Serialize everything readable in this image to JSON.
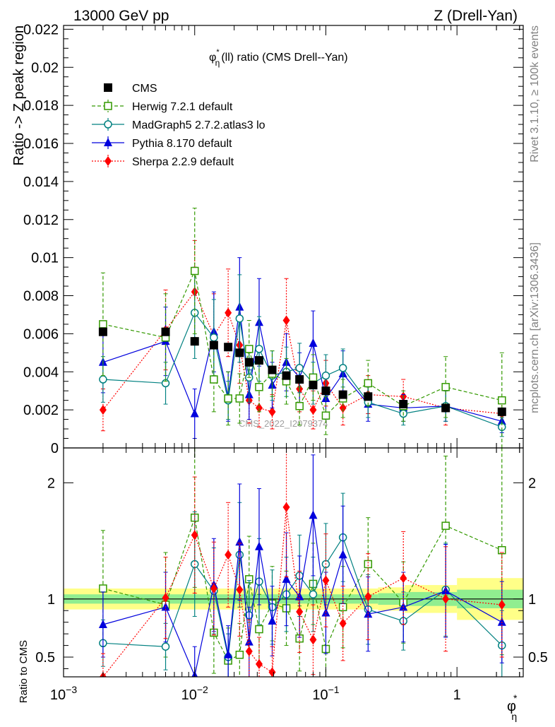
{
  "header": {
    "left": "13000 GeV pp",
    "right": "Z (Drell-Yan)"
  },
  "side_labels": {
    "rivet": "Rivet 3.1.10, ≥ 100k events",
    "mcplots": "mcplots.cern.ch [arXiv:1306.3436]"
  },
  "watermark": "CMS_2022_I2079374",
  "colors": {
    "CMS": "#000000",
    "Herwig": "#339900",
    "MadGraph": "#008080",
    "Pythia": "#0000dd",
    "Sherpa": "#ff0000",
    "band_stat": "#90ee90",
    "band_total": "#ffff88"
  },
  "chart_data": [
    {
      "type": "scatter",
      "title_base": "φ",
      "title_sup": "*",
      "title_sub": "η",
      "title_rest": "(ll) ratio (CMS Drell--Yan)",
      "ylabel": "Ratio -> Z peak region",
      "xscale": "log",
      "xlim": [
        0.001,
        3.2
      ],
      "ylim": [
        0,
        0.0222
      ],
      "yticks": [
        {
          "v": 0,
          "label": "0"
        },
        {
          "v": 0.002,
          "label": "0.002"
        },
        {
          "v": 0.004,
          "label": "0.004"
        },
        {
          "v": 0.006,
          "label": "0.006"
        },
        {
          "v": 0.008,
          "label": "0.008"
        },
        {
          "v": 0.01,
          "label": "0.01"
        },
        {
          "v": 0.012,
          "label": "0.012"
        },
        {
          "v": 0.014,
          "label": "0.014"
        },
        {
          "v": 0.016,
          "label": "0.016"
        },
        {
          "v": 0.018,
          "label": "0.018"
        },
        {
          "v": 0.02,
          "label": "0.02"
        },
        {
          "v": 0.022,
          "label": "0.022"
        }
      ],
      "x": [
        0.002,
        0.006,
        0.01,
        0.014,
        0.018,
        0.022,
        0.026,
        0.031,
        0.039,
        0.05,
        0.063,
        0.08,
        0.1,
        0.135,
        0.21,
        0.39,
        0.82,
        2.2
      ],
      "legend": {
        "placement": "top-left"
      },
      "series": [
        {
          "name": "CMS",
          "key": "CMS",
          "marker": "filled-square",
          "line": "none",
          "y": [
            0.0061,
            0.0061,
            0.0056,
            0.0054,
            0.0053,
            0.005,
            0.0045,
            0.0046,
            0.0041,
            0.0038,
            0.0036,
            0.0033,
            0.003,
            0.0028,
            0.0027,
            0.0023,
            0.0021,
            0.0019
          ],
          "err": [
            0.0002,
            0.0002,
            0.0002,
            0.0002,
            0.0002,
            0.0002,
            0.0002,
            0.0002,
            0.0002,
            0.0002,
            0.0002,
            0.0002,
            0.0002,
            0.0002,
            0.0002,
            0.0002,
            0.0002,
            0.0002
          ]
        },
        {
          "name": "Herwig 7.2.1 default",
          "key": "Herwig",
          "marker": "open-square",
          "line": "dashed",
          "y": [
            0.0065,
            0.0058,
            0.0093,
            0.0036,
            0.0026,
            0.0026,
            0.0052,
            0.0032,
            0.0039,
            0.0035,
            0.0022,
            0.0037,
            0.0017,
            0.0026,
            0.0034,
            0.0022,
            0.0032,
            0.0025
          ],
          "err": [
            0.0027,
            0.0023,
            0.0033,
            0.0017,
            0.0014,
            0.0013,
            0.0015,
            0.0013,
            0.0012,
            0.0012,
            0.001,
            0.0012,
            0.001,
            0.001,
            0.0012,
            0.0008,
            0.0016,
            0.0025
          ]
        },
        {
          "name": "MadGraph5 2.7.2.atlas3 lo",
          "key": "MadGraph",
          "marker": "open-circle",
          "line": "solid",
          "y": [
            0.0036,
            0.0034,
            0.0071,
            0.0058,
            0.0025,
            0.0068,
            0.0037,
            0.0052,
            0.0038,
            0.004,
            0.0042,
            0.0034,
            0.0038,
            0.0042,
            0.0024,
            0.0018,
            0.0022,
            0.0011
          ],
          "err": [
            0.0012,
            0.0011,
            0.0024,
            0.002,
            0.001,
            0.0023,
            0.0013,
            0.0017,
            0.0013,
            0.0013,
            0.0013,
            0.0011,
            0.0011,
            0.001,
            0.0008,
            0.0006,
            0.0008,
            0.0005
          ]
        },
        {
          "name": "Pythia 8.170 default",
          "key": "Pythia",
          "marker": "filled-triangle",
          "line": "solid",
          "y": [
            0.0045,
            0.0056,
            0.0018,
            0.0061,
            0.0027,
            0.0074,
            0.0028,
            0.0066,
            0.0033,
            0.0045,
            0.0037,
            0.0055,
            0.0026,
            0.0039,
            0.0023,
            0.0021,
            0.0022,
            0.0014
          ],
          "err": [
            0.0016,
            0.0018,
            0.0013,
            0.0021,
            0.0013,
            0.0026,
            0.0013,
            0.0023,
            0.0012,
            0.0015,
            0.0013,
            0.0017,
            0.0011,
            0.0012,
            0.0009,
            0.0007,
            0.0008,
            0.0006
          ]
        },
        {
          "name": "Sherpa 2.2.9 default",
          "key": "Sherpa",
          "marker": "filled-diamond",
          "line": "dotted",
          "y": [
            0.002,
            0.0062,
            0.0082,
            0.0059,
            0.0071,
            0.0054,
            0.0025,
            0.0021,
            0.0019,
            0.0067,
            0.0031,
            0.002,
            0.0034,
            0.0021,
            0.0028,
            0.0027,
            0.0021,
            0.0018
          ],
          "err": [
            0.0011,
            0.0021,
            0.0027,
            0.0022,
            0.0023,
            0.002,
            0.0012,
            0.001,
            0.0009,
            0.0022,
            0.0012,
            0.001,
            0.0012,
            0.0009,
            0.001,
            0.0009,
            0.0009,
            0.0008
          ]
        }
      ]
    },
    {
      "type": "scatter",
      "ylabel": "Ratio to CMS",
      "xlabel_base": "φ",
      "xlabel_sup": "*",
      "xlabel_sub": "η",
      "xscale": "log",
      "xlim": [
        0.001,
        3.2
      ],
      "ylim": [
        0.33,
        2.3
      ],
      "yticks": [
        {
          "v": 0.5,
          "label": "0.5"
        },
        {
          "v": 1,
          "label": "1"
        },
        {
          "v": 2,
          "label": "2"
        }
      ],
      "xticks": [
        {
          "v": 0.001,
          "base": "10",
          "exp": "−3"
        },
        {
          "v": 0.01,
          "base": "10",
          "exp": "−2"
        },
        {
          "v": 0.1,
          "base": "10",
          "exp": "−1"
        },
        {
          "v": 1,
          "base": "1",
          "exp": ""
        }
      ],
      "band": {
        "x": [
          0.001,
          0.006,
          0.01,
          0.1,
          0.25,
          0.4,
          1.0,
          3.2
        ],
        "total": [
          0.09,
          0.09,
          0.09,
          0.09,
          0.1,
          0.12,
          0.18,
          0.18
        ],
        "stat": [
          0.04,
          0.04,
          0.04,
          0.04,
          0.05,
          0.06,
          0.08,
          0.08
        ]
      },
      "series": [
        {
          "key": "Herwig",
          "y": [
            1.09,
            0.95,
            1.7,
            0.71,
            0.47,
            0.52,
            1.17,
            0.74,
            0.96,
            0.92,
            0.66,
            1.13,
            0.57,
            0.93,
            1.3,
            0.97,
            1.63,
            1.42
          ],
          "err": [
            0.5,
            0.45,
            0.6,
            0.35,
            0.28,
            0.27,
            0.37,
            0.3,
            0.32,
            0.32,
            0.28,
            0.35,
            0.3,
            0.35,
            0.4,
            0.35,
            0.6,
            0.9
          ]
        },
        {
          "key": "MadGraph",
          "y": [
            0.62,
            0.59,
            1.3,
            1.07,
            0.5,
            1.38,
            0.86,
            1.15,
            0.93,
            1.04,
            1.2,
            1.04,
            1.3,
            1.53,
            0.91,
            0.81,
            1.08,
            0.6
          ],
          "err": [
            0.2,
            0.2,
            0.45,
            0.37,
            0.2,
            0.45,
            0.3,
            0.37,
            0.32,
            0.32,
            0.35,
            0.32,
            0.35,
            0.38,
            0.3,
            0.25,
            0.4,
            0.3
          ]
        },
        {
          "key": "Pythia",
          "y": [
            0.78,
            0.93,
            0.34,
            1.12,
            0.52,
            1.49,
            0.63,
            1.45,
            0.81,
            1.17,
            1.02,
            1.72,
            0.88,
            1.38,
            0.87,
            0.93,
            1.07,
            0.8
          ],
          "err": [
            0.28,
            0.3,
            0.25,
            0.4,
            0.25,
            0.5,
            0.3,
            0.5,
            0.3,
            0.4,
            0.35,
            0.52,
            0.35,
            0.42,
            0.32,
            0.3,
            0.4,
            0.35
          ]
        },
        {
          "key": "Sherpa",
          "y": [
            0.33,
            1.01,
            1.55,
            1.09,
            1.38,
            1.08,
            0.55,
            0.44,
            0.37,
            1.79,
            0.89,
            0.65,
            1.16,
            0.79,
            1.02,
            1.18,
            1.0,
            0.95
          ],
          "err": [
            0.2,
            0.35,
            0.5,
            0.4,
            0.45,
            0.4,
            0.27,
            0.23,
            0.22,
            0.6,
            0.35,
            0.3,
            0.4,
            0.32,
            0.37,
            0.4,
            0.45,
            0.45
          ]
        }
      ]
    }
  ]
}
